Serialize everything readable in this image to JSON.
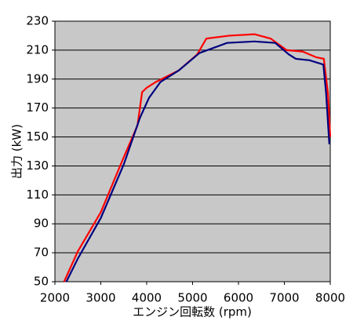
{
  "chart_data": {
    "type": "line",
    "xlabel": "エンジン回転数 (rpm)",
    "ylabel": "出力 (kW)",
    "xlim": [
      2000,
      8000
    ],
    "xticks": [
      2000,
      3000,
      4000,
      5000,
      6000,
      7000,
      8000
    ],
    "ylim": [
      50,
      230
    ],
    "yticks": [
      50,
      70,
      90,
      110,
      130,
      150,
      170,
      190,
      210,
      230
    ],
    "grid": true,
    "background": "#c8c8c8",
    "series": [
      {
        "color": "#ff0000",
        "x": [
          2200,
          2500,
          3000,
          3500,
          3800,
          3900,
          4000,
          4200,
          4700,
          5100,
          5300,
          5800,
          6350,
          6700,
          7050,
          7400,
          7700,
          7860,
          7950,
          8000
        ],
        "values": [
          50,
          71,
          98,
          136,
          158,
          181,
          184,
          188,
          196,
          207,
          218,
          220,
          221,
          218,
          210,
          209,
          205,
          204,
          180,
          150
        ]
      },
      {
        "color": "#00007f",
        "x": [
          2250,
          2500,
          3000,
          3500,
          3850,
          4050,
          4300,
          4700,
          5150,
          5750,
          6350,
          6800,
          7100,
          7250,
          7550,
          7850,
          7910,
          7980
        ],
        "values": [
          50,
          66,
          94,
          131,
          163,
          177,
          188,
          196,
          208,
          215,
          216,
          215,
          207,
          204,
          203,
          200,
          180,
          145
        ]
      }
    ]
  }
}
